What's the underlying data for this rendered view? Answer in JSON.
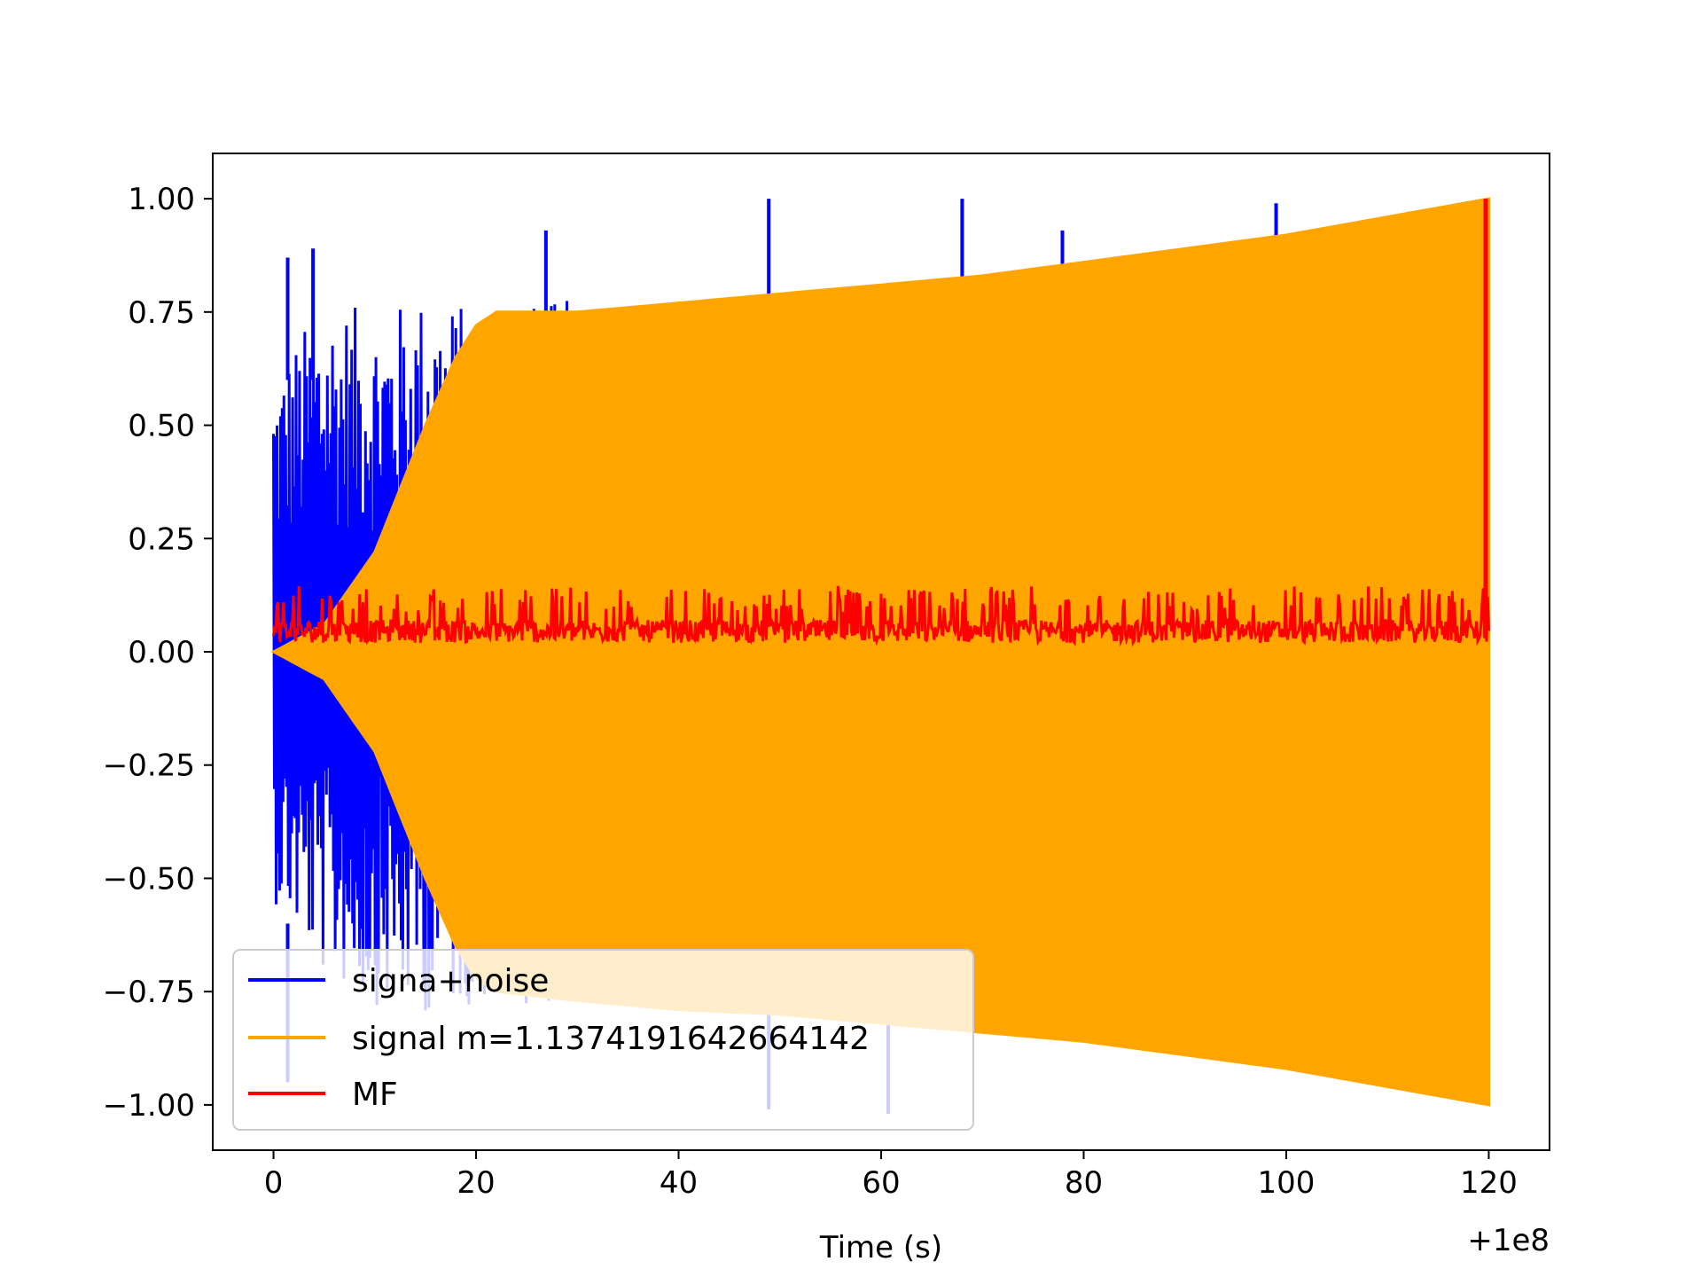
{
  "chart_data": {
    "type": "line",
    "title": "",
    "xlabel": "Time (s)",
    "ylabel": "",
    "x_offset_label": "+1e8",
    "xlim": [
      -6,
      126
    ],
    "ylim": [
      -1.1,
      1.1
    ],
    "xticks": [
      0,
      20,
      40,
      60,
      80,
      100,
      120
    ],
    "xtick_labels": [
      "0",
      "20",
      "40",
      "60",
      "80",
      "100",
      "120"
    ],
    "yticks": [
      1.0,
      0.75,
      0.5,
      0.25,
      0.0,
      -0.25,
      -0.5,
      -0.75,
      -1.0
    ],
    "ytick_labels": [
      "1.00",
      "0.75",
      "0.50",
      "0.25",
      "0.00",
      "−0.25",
      "−0.50",
      "−0.75",
      "−1.00"
    ],
    "grid": false,
    "legend_position": "lower-left",
    "series": [
      {
        "name": "signa+noise",
        "color": "#0000ff",
        "x_range": [
          0,
          120
        ],
        "envelope_x": [
          0,
          5,
          10,
          15,
          20,
          30,
          40,
          50,
          60,
          70,
          80,
          90,
          100,
          110,
          120
        ],
        "envelope_upper": [
          0.62,
          0.78,
          0.75,
          0.79,
          0.76,
          0.78,
          0.77,
          0.78,
          0.81,
          0.82,
          0.84,
          0.87,
          0.91,
          0.95,
          1.0
        ],
        "envelope_lower": [
          -0.55,
          -0.72,
          -0.78,
          -0.8,
          -0.78,
          -0.78,
          -0.8,
          -0.8,
          -0.82,
          -0.82,
          -0.85,
          -0.88,
          -0.92,
          -0.96,
          -1.0
        ],
        "spikes_up": [
          [
            1.4,
            0.87
          ],
          [
            3.9,
            0.89
          ],
          [
            26.9,
            0.93
          ],
          [
            48.9,
            1.0
          ],
          [
            68.0,
            1.0
          ],
          [
            77.9,
            0.93
          ],
          [
            99.0,
            0.99
          ]
        ],
        "spikes_down": [
          [
            1.4,
            -0.95
          ],
          [
            48.9,
            -1.01
          ],
          [
            60.7,
            -1.02
          ]
        ]
      },
      {
        "name": "signal m=1.1374191642664142",
        "color": "#ffa500",
        "x_range": [
          0,
          120
        ],
        "envelope_x": [
          0,
          5,
          10,
          15,
          18,
          20,
          22,
          30,
          40,
          50,
          60,
          70,
          80,
          90,
          100,
          110,
          120
        ],
        "envelope_upper": [
          0.0,
          0.06,
          0.22,
          0.5,
          0.65,
          0.72,
          0.75,
          0.75,
          0.77,
          0.79,
          0.81,
          0.83,
          0.86,
          0.89,
          0.92,
          0.96,
          1.0
        ],
        "envelope_lower": [
          0.0,
          -0.06,
          -0.22,
          -0.5,
          -0.65,
          -0.72,
          -0.75,
          -0.77,
          -0.79,
          -0.8,
          -0.82,
          -0.84,
          -0.86,
          -0.89,
          -0.92,
          -0.96,
          -1.0
        ]
      },
      {
        "name": "MF",
        "color": "#ff0000",
        "x_range": [
          0,
          120
        ],
        "baseline": 0.0,
        "typical_max": 0.2,
        "peak": [
          119.7,
          1.0
        ]
      }
    ]
  }
}
